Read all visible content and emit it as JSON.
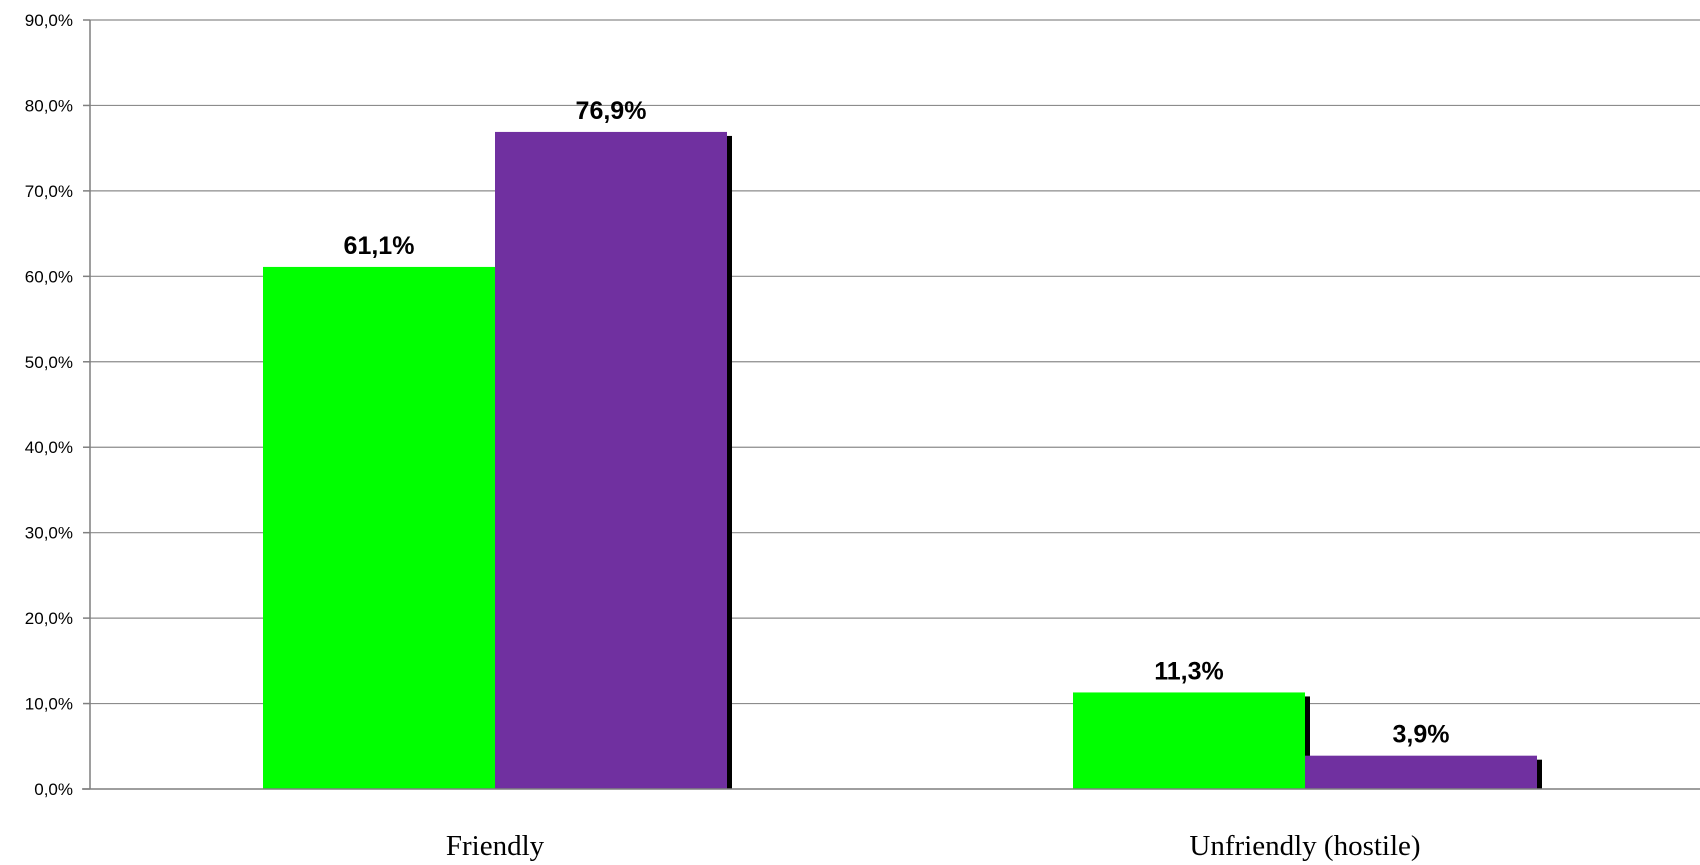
{
  "chart_data": {
    "type": "bar",
    "categories": [
      "Friendly",
      "Unfriendly (hostile)"
    ],
    "series": [
      {
        "values": [
          61.1,
          11.3
        ],
        "labels": [
          "61,1%",
          "11,3%"
        ],
        "color": "#00ff00"
      },
      {
        "values": [
          76.9,
          3.9
        ],
        "labels": [
          "76,9%",
          "3,9%"
        ],
        "color": "#7030a0"
      }
    ],
    "ylim": [
      0,
      90
    ],
    "yticks": [
      "0,0%",
      "10,0%",
      "20,0%",
      "30,0%",
      "40,0%",
      "50,0%",
      "60,0%",
      "70,0%",
      "80,0%",
      "90,0%"
    ],
    "grid": true,
    "title": "",
    "xlabel": "",
    "ylabel": "",
    "colors": {
      "gridline": "#8c8c8c",
      "shadow": "#000000"
    }
  }
}
